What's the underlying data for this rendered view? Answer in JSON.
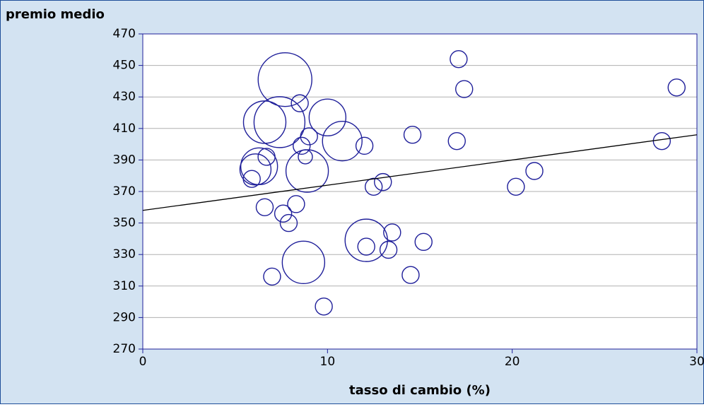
{
  "chart_data": {
    "type": "bubble",
    "y_label": "premio medio",
    "x_label": "tasso di cambio (%)",
    "x": [
      17.1,
      17.4,
      28.9,
      7.7,
      7.4,
      6.6,
      8.5,
      10.0,
      10.8,
      9.0,
      8.6,
      8.8,
      12.0,
      14.6,
      17.0,
      28.1,
      6.7,
      6.3,
      6.1,
      5.9,
      8.9,
      13.0,
      12.5,
      20.2,
      21.2,
      6.6,
      8.3,
      7.6,
      7.9,
      12.1,
      12.1,
      13.3,
      13.5,
      15.2,
      8.7,
      7.0,
      14.5,
      9.8
    ],
    "y": [
      454,
      435,
      436,
      441,
      414,
      414,
      426,
      417,
      402,
      405,
      399,
      392,
      399,
      406,
      402,
      402,
      392,
      386,
      384,
      378,
      383,
      376,
      373,
      373,
      383,
      360,
      362,
      356,
      350,
      339,
      335,
      333,
      344,
      338,
      325,
      316,
      317,
      297
    ],
    "size": [
      12,
      12,
      12,
      38,
      36,
      30,
      12,
      26,
      28,
      12,
      12,
      10,
      12,
      12,
      12,
      12,
      12,
      26,
      22,
      12,
      30,
      12,
      12,
      12,
      12,
      12,
      12,
      12,
      12,
      30,
      12,
      12,
      12,
      12,
      30,
      12,
      12,
      12
    ],
    "color": "#1f1f9a",
    "trendline": {
      "x": [
        0,
        30
      ],
      "y": [
        358,
        406
      ],
      "color": "#000000"
    },
    "xlim": [
      0,
      30
    ],
    "xticks": [
      0,
      10,
      20,
      30
    ],
    "ylim": [
      270,
      470
    ],
    "yticks": [
      270,
      290,
      310,
      330,
      350,
      370,
      390,
      410,
      430,
      450,
      470
    ],
    "grid": true
  }
}
